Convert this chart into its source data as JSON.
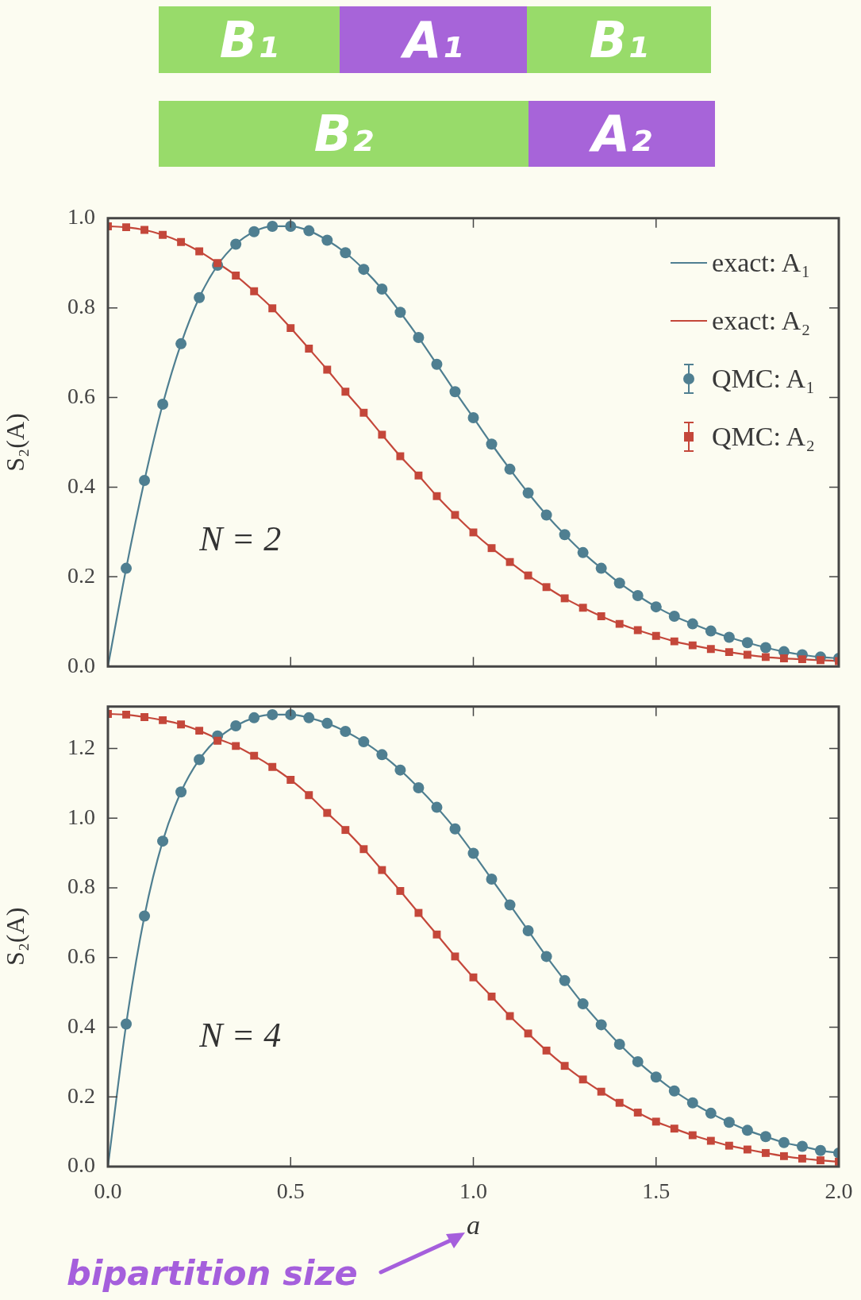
{
  "chart_data": [
    {
      "type": "line",
      "ylabel": "S₂(A)",
      "annotations": [
        "B₁",
        "A₁",
        "B₁",
        "B₂",
        "A₂",
        "N = 2"
      ],
      "x": [
        0,
        0.05,
        0.1,
        0.15,
        0.2,
        0.25,
        0.3,
        0.35,
        0.4,
        0.45,
        0.5,
        0.55,
        0.6,
        0.65,
        0.7,
        0.75,
        0.8,
        0.85,
        0.9,
        0.95,
        1.0,
        1.05,
        1.1,
        1.15,
        1.2,
        1.25,
        1.3,
        1.35,
        1.4,
        1.45,
        1.5,
        1.55,
        1.6,
        1.65,
        1.7,
        1.75,
        1.8,
        1.85,
        1.9,
        1.95,
        2.0
      ],
      "series": [
        {
          "name": "exact: A₁",
          "type": "line",
          "color": "#4f7f91",
          "values": [
            0,
            0.219,
            0.415,
            0.585,
            0.72,
            0.823,
            0.895,
            0.942,
            0.97,
            0.982,
            0.982,
            0.972,
            0.951,
            0.923,
            0.886,
            0.842,
            0.79,
            0.734,
            0.674,
            0.613,
            0.555,
            0.496,
            0.44,
            0.387,
            0.338,
            0.294,
            0.254,
            0.219,
            0.186,
            0.158,
            0.133,
            0.112,
            0.095,
            0.079,
            0.065,
            0.053,
            0.042,
            0.033,
            0.026,
            0.021,
            0.018
          ]
        },
        {
          "name": "exact: A₂",
          "type": "line",
          "color": "#c4473a",
          "values": [
            0.982,
            0.98,
            0.974,
            0.963,
            0.947,
            0.926,
            0.9,
            0.872,
            0.837,
            0.799,
            0.755,
            0.709,
            0.662,
            0.613,
            0.566,
            0.517,
            0.469,
            0.426,
            0.38,
            0.338,
            0.299,
            0.264,
            0.233,
            0.203,
            0.177,
            0.152,
            0.131,
            0.112,
            0.095,
            0.081,
            0.068,
            0.056,
            0.047,
            0.039,
            0.032,
            0.026,
            0.021,
            0.018,
            0.016,
            0.014,
            0.012
          ]
        },
        {
          "name": "QMC: A₁",
          "type": "scatter",
          "marker": "circle",
          "color": "#4f7f91",
          "values": [
            null,
            0.219,
            0.415,
            0.585,
            0.72,
            0.823,
            0.895,
            0.942,
            0.97,
            0.982,
            0.982,
            0.972,
            0.951,
            0.923,
            0.886,
            0.842,
            0.79,
            0.734,
            0.674,
            0.613,
            0.555,
            0.496,
            0.44,
            0.387,
            0.338,
            0.294,
            0.254,
            0.219,
            0.186,
            0.158,
            0.133,
            0.112,
            0.095,
            0.079,
            0.065,
            0.053,
            0.042,
            0.033,
            0.026,
            0.021,
            0.018
          ]
        },
        {
          "name": "QMC: A₂",
          "type": "scatter",
          "marker": "square",
          "color": "#c4473a",
          "values": [
            0.982,
            0.98,
            0.974,
            0.963,
            0.947,
            0.926,
            0.9,
            0.872,
            0.837,
            0.799,
            0.755,
            0.709,
            0.662,
            0.613,
            0.566,
            0.517,
            0.469,
            0.426,
            0.38,
            0.338,
            0.299,
            0.264,
            0.233,
            0.203,
            0.177,
            0.152,
            0.131,
            0.112,
            0.095,
            0.081,
            0.068,
            0.056,
            0.047,
            0.039,
            0.032,
            0.026,
            0.021,
            0.018,
            0.016,
            0.014,
            0.012
          ]
        }
      ],
      "xlim": [
        0,
        2
      ],
      "xticks": [
        {
          "value": 0,
          "label": null
        },
        {
          "value": 0.5,
          "label": null
        },
        {
          "value": 1,
          "label": null
        },
        {
          "value": 1.5,
          "label": null
        },
        {
          "value": 2,
          "label": null
        }
      ],
      "ylim": [
        0,
        1
      ],
      "yticks": [
        {
          "value": 0,
          "label": "0.0"
        },
        {
          "value": 0.2,
          "label": "0.2"
        },
        {
          "value": 0.4,
          "label": "0.4"
        },
        {
          "value": 0.6,
          "label": "0.6"
        },
        {
          "value": 0.8,
          "label": "0.8"
        },
        {
          "value": 1,
          "label": "1.0"
        }
      ],
      "tick_labels": "y",
      "legend": "top right"
    },
    {
      "type": "line",
      "xlabel": "a",
      "ylabel": "S₂(A)",
      "annotations": [
        "N = 4",
        "bipartition size"
      ],
      "x": [
        0,
        0.05,
        0.1,
        0.15,
        0.2,
        0.25,
        0.3,
        0.35,
        0.4,
        0.45,
        0.5,
        0.55,
        0.6,
        0.65,
        0.7,
        0.75,
        0.8,
        0.85,
        0.9,
        0.95,
        1.0,
        1.05,
        1.1,
        1.15,
        1.2,
        1.25,
        1.3,
        1.35,
        1.4,
        1.45,
        1.5,
        1.55,
        1.6,
        1.65,
        1.7,
        1.75,
        1.8,
        1.85,
        1.9,
        1.95,
        2.0
      ],
      "series": [
        {
          "type": "line",
          "color": "#4f7f91",
          "values": [
            0,
            0.409,
            0.719,
            0.934,
            1.075,
            1.168,
            1.228,
            1.265,
            1.288,
            1.297,
            1.297,
            1.288,
            1.272,
            1.249,
            1.219,
            1.182,
            1.138,
            1.087,
            1.031,
            0.969,
            0.899,
            0.825,
            0.751,
            0.677,
            0.603,
            0.534,
            0.467,
            0.407,
            0.351,
            0.301,
            0.257,
            0.217,
            0.183,
            0.153,
            0.127,
            0.104,
            0.086,
            0.069,
            0.058,
            0.046,
            0.039
          ]
        },
        {
          "type": "line",
          "color": "#c4473a",
          "values": [
            1.299,
            1.297,
            1.29,
            1.281,
            1.269,
            1.251,
            1.228,
            1.207,
            1.179,
            1.147,
            1.11,
            1.066,
            1.015,
            0.966,
            0.911,
            0.851,
            0.791,
            0.728,
            0.666,
            0.603,
            0.543,
            0.488,
            0.432,
            0.382,
            0.333,
            0.289,
            0.25,
            0.215,
            0.183,
            0.155,
            0.129,
            0.109,
            0.09,
            0.074,
            0.06,
            0.049,
            0.039,
            0.03,
            0.023,
            0.018,
            0.014
          ]
        },
        {
          "type": "scatter",
          "marker": "circle",
          "color": "#4f7f91",
          "values": [
            null,
            0.409,
            0.719,
            0.934,
            1.075,
            1.168,
            1.236,
            1.265,
            1.288,
            1.297,
            1.297,
            1.288,
            1.272,
            1.249,
            1.219,
            1.182,
            1.138,
            1.087,
            1.031,
            0.969,
            0.899,
            0.825,
            0.751,
            0.677,
            0.603,
            0.534,
            0.467,
            0.407,
            0.351,
            0.301,
            0.257,
            0.217,
            0.183,
            0.153,
            0.127,
            0.104,
            0.086,
            0.069,
            0.058,
            0.046,
            0.039
          ]
        },
        {
          "type": "scatter",
          "marker": "square",
          "color": "#c4473a",
          "values": [
            1.299,
            1.297,
            1.29,
            1.281,
            1.269,
            1.251,
            1.222,
            1.207,
            1.179,
            1.147,
            1.11,
            1.066,
            1.015,
            0.966,
            0.911,
            0.851,
            0.791,
            0.728,
            0.666,
            0.603,
            0.543,
            0.488,
            0.432,
            0.382,
            0.333,
            0.289,
            0.25,
            0.215,
            0.183,
            0.155,
            0.129,
            0.109,
            0.09,
            0.074,
            0.06,
            0.049,
            0.039,
            0.03,
            0.023,
            0.018,
            0.014
          ]
        }
      ],
      "xlim": [
        0,
        2
      ],
      "xticks": [
        {
          "value": 0,
          "label": "0.0"
        },
        {
          "value": 0.5,
          "label": "0.5"
        },
        {
          "value": 1,
          "label": "1.0"
        },
        {
          "value": 1.5,
          "label": "1.5"
        },
        {
          "value": 2,
          "label": "2.0"
        }
      ],
      "ylim": [
        0,
        1.32
      ],
      "yticks": [
        {
          "value": 0,
          "label": "0.0"
        },
        {
          "value": 0.2,
          "label": "0.2"
        },
        {
          "value": 0.4,
          "label": "0.4"
        },
        {
          "value": 0.6,
          "label": "0.6"
        },
        {
          "value": 0.8,
          "label": "0.8"
        },
        {
          "value": 1,
          "label": "1.0"
        },
        {
          "value": 1.2,
          "label": "1.2"
        }
      ]
    }
  ]
}
